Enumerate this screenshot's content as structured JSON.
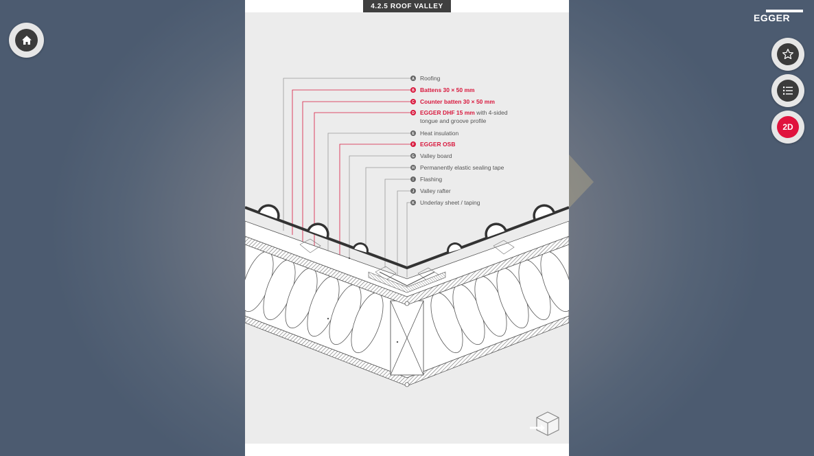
{
  "header": {
    "section_title": "4.2.5  ROOF VALLEY",
    "logo_text": "EGGER"
  },
  "buttons": {
    "home_icon": "home-icon",
    "favorite_icon": "star-icon",
    "list_icon": "list-icon",
    "view_mode_label": "2D",
    "cube_icon": "cube-arrow-icon"
  },
  "callouts": [
    {
      "letter": "A",
      "text": "Roofing",
      "extra": "",
      "highlight": false
    },
    {
      "letter": "B",
      "text": "Battens 30 × 50 mm",
      "extra": "",
      "highlight": true
    },
    {
      "letter": "C",
      "text": "Counter batten 30 × 50 mm",
      "extra": "",
      "highlight": true
    },
    {
      "letter": "D",
      "text": "EGGER DHF 15 mm",
      "extra": " with 4-sided",
      "line2": "tongue and groove profile",
      "highlight": true
    },
    {
      "letter": "E",
      "text": "Heat insulation",
      "extra": "",
      "highlight": false
    },
    {
      "letter": "F",
      "text": "EGGER OSB",
      "extra": "",
      "highlight": true
    },
    {
      "letter": "G",
      "text": "Valley board",
      "extra": "",
      "highlight": false
    },
    {
      "letter": "H",
      "text": "Permanently elastic sealing tape",
      "extra": "",
      "highlight": false
    },
    {
      "letter": "I",
      "text": "Flashing",
      "extra": "",
      "highlight": false
    },
    {
      "letter": "J",
      "text": "Valley rafter",
      "extra": "",
      "highlight": false
    },
    {
      "letter": "K",
      "text": "Underlay sheet / taping",
      "extra": "",
      "highlight": false
    }
  ],
  "colors": {
    "accent": "#e0123d",
    "dark": "#3b3b3b",
    "sheet": "#ececec"
  }
}
